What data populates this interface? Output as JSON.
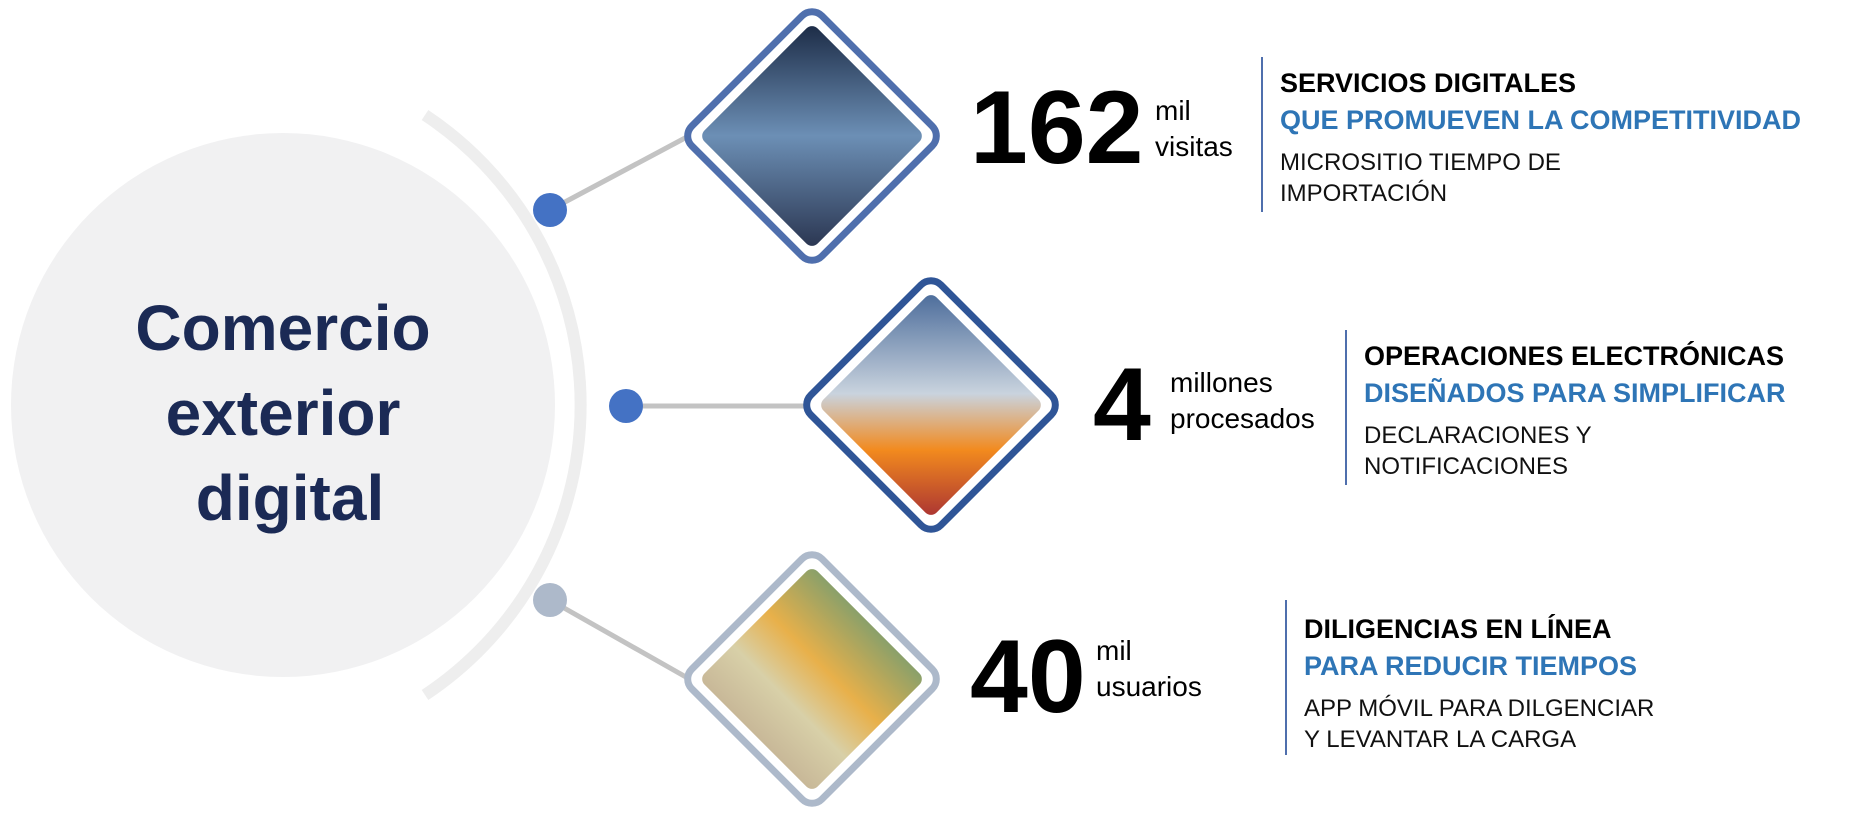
{
  "title_lines": [
    "Comercio",
    "exterior",
    "digital"
  ],
  "items": [
    {
      "number": "162",
      "unit_lines": [
        "mil",
        "visitas"
      ],
      "heading": "SERVICIOS DIGITALES",
      "subheading": "QUE PROMUEVEN LA COMPETITIVIDAD",
      "description_lines": [
        "MICROSITIO TIEMPO DE",
        "IMPORTACIÓN"
      ]
    },
    {
      "number": "4",
      "unit_lines": [
        "millones",
        "procesados"
      ],
      "heading": "OPERACIONES ELECTRÓNICAS",
      "subheading": "DISEÑADOS PARA SIMPLIFICAR",
      "description_lines": [
        "DECLARACIONES Y",
        "NOTIFICACIONES"
      ]
    },
    {
      "number": "40",
      "unit_lines": [
        "mil",
        "usuarios"
      ],
      "heading": "DILIGENCIAS EN LÍNEA",
      "subheading": "PARA REDUCIR TIEMPOS",
      "description_lines": [
        "APP MÓVIL PARA DILGENCIAR",
        "Y LEVANTAR LA CARGA"
      ]
    }
  ]
}
